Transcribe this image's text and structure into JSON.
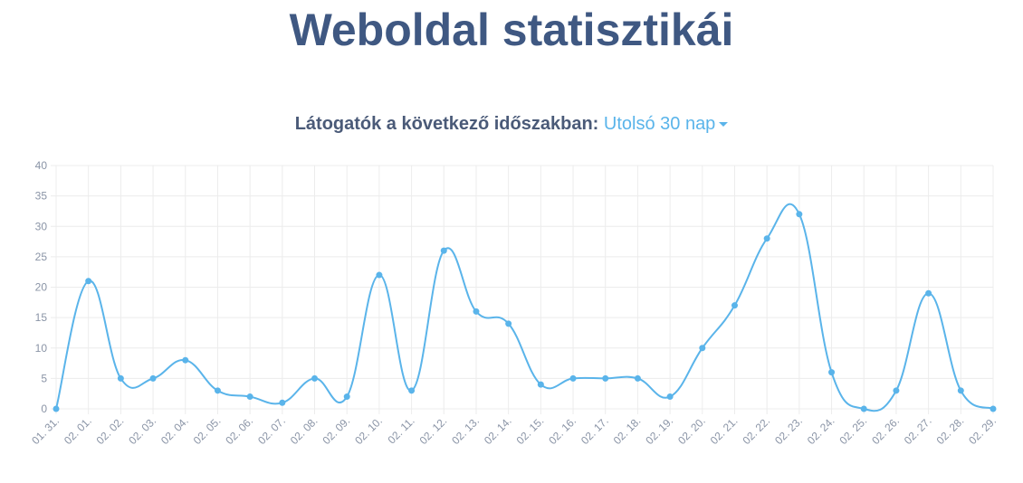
{
  "chart_data": {
    "type": "line",
    "title": "Weboldal statisztikái",
    "subtitle": "Látogatók a következő időszakban:",
    "period": "Utolsó 30 nap",
    "categories": [
      "01. 31.",
      "02. 01.",
      "02. 02.",
      "02. 03.",
      "02. 04.",
      "02. 05.",
      "02. 06.",
      "02. 07.",
      "02. 08.",
      "02. 09.",
      "02. 10.",
      "02. 11.",
      "02. 12.",
      "02. 13.",
      "02. 14.",
      "02. 15.",
      "02. 16.",
      "02. 17.",
      "02. 18.",
      "02. 19.",
      "02. 20.",
      "02. 21.",
      "02. 22.",
      "02. 23.",
      "02. 24.",
      "02. 25.",
      "02. 26.",
      "02. 27.",
      "02. 28.",
      "02. 29."
    ],
    "values": [
      0,
      21,
      5,
      5,
      8,
      3,
      2,
      1,
      5,
      2,
      22,
      3,
      26,
      16,
      14,
      4,
      5,
      5,
      5,
      2,
      10,
      17,
      28,
      32,
      6,
      0,
      3,
      19,
      3,
      0
    ],
    "color": "#5ab4ea",
    "ylim": [
      0,
      40
    ],
    "yticks": [
      0,
      5,
      10,
      15,
      20,
      25,
      30,
      35,
      40
    ],
    "grid": true
  }
}
